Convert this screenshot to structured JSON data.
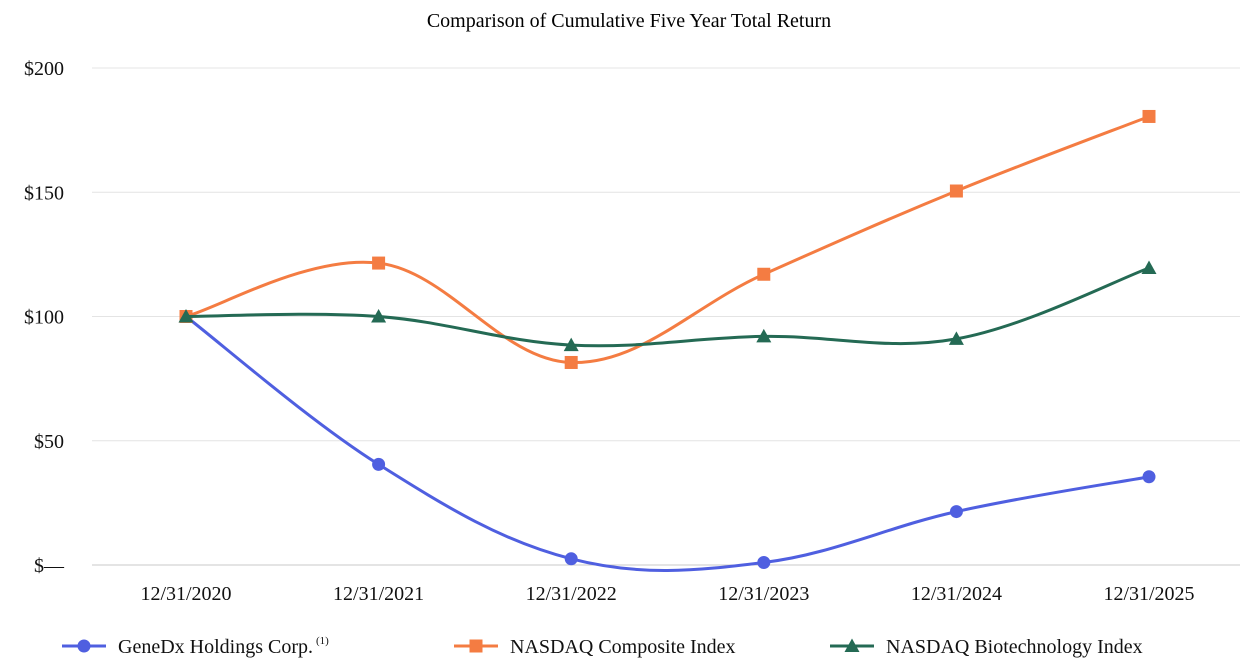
{
  "chart_data": {
    "type": "line",
    "title": "Comparison of Cumulative Five Year Total Return",
    "categories": [
      "12/31/2020",
      "12/31/2021",
      "12/31/2022",
      "12/31/2023",
      "12/31/2024",
      "12/31/2025"
    ],
    "ylim": [
      0,
      200
    ],
    "yticks": [
      {
        "value": 200,
        "label": "$200"
      },
      {
        "value": 150,
        "label": "$150"
      },
      {
        "value": 100,
        "label": "$100"
      },
      {
        "value": 50,
        "label": "$50"
      },
      {
        "value": 0,
        "label": "$—"
      }
    ],
    "grid": true,
    "legend_position": "bottom",
    "series": [
      {
        "name": "GeneDx Holdings Corp.",
        "name_sup": "(1)",
        "color": "#4f5fe0",
        "marker": "circle",
        "values": [
          100,
          40.5,
          2.5,
          1.0,
          21.5,
          35.5
        ]
      },
      {
        "name": "NASDAQ Composite Index",
        "color": "#f47c42",
        "marker": "square",
        "values": [
          100,
          121.5,
          81.5,
          117.0,
          150.5,
          180.5
        ]
      },
      {
        "name": "NASDAQ Biotechnology Index",
        "color": "#246a54",
        "marker": "triangle",
        "values": [
          100,
          100,
          88.5,
          92.0,
          91.0,
          119.5
        ]
      }
    ]
  }
}
